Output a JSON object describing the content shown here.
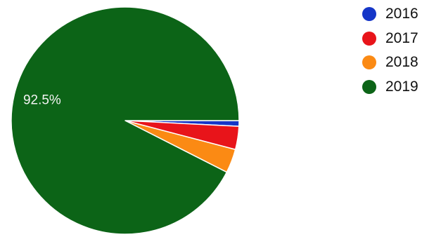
{
  "chart_data": {
    "type": "pie",
    "title": "",
    "categories": [
      "2016",
      "2017",
      "2018",
      "2019"
    ],
    "values": [
      0.8,
      3.3,
      3.4,
      92.5
    ],
    "unit": "%",
    "colors": [
      "#1536c8",
      "#e8141a",
      "#fb8a14",
      "#0c6417"
    ],
    "slice_labels": [
      "",
      "",
      "",
      "92.5%"
    ],
    "start_angle_deg": 0,
    "direction": "clockwise",
    "legend_position": "top-right"
  }
}
